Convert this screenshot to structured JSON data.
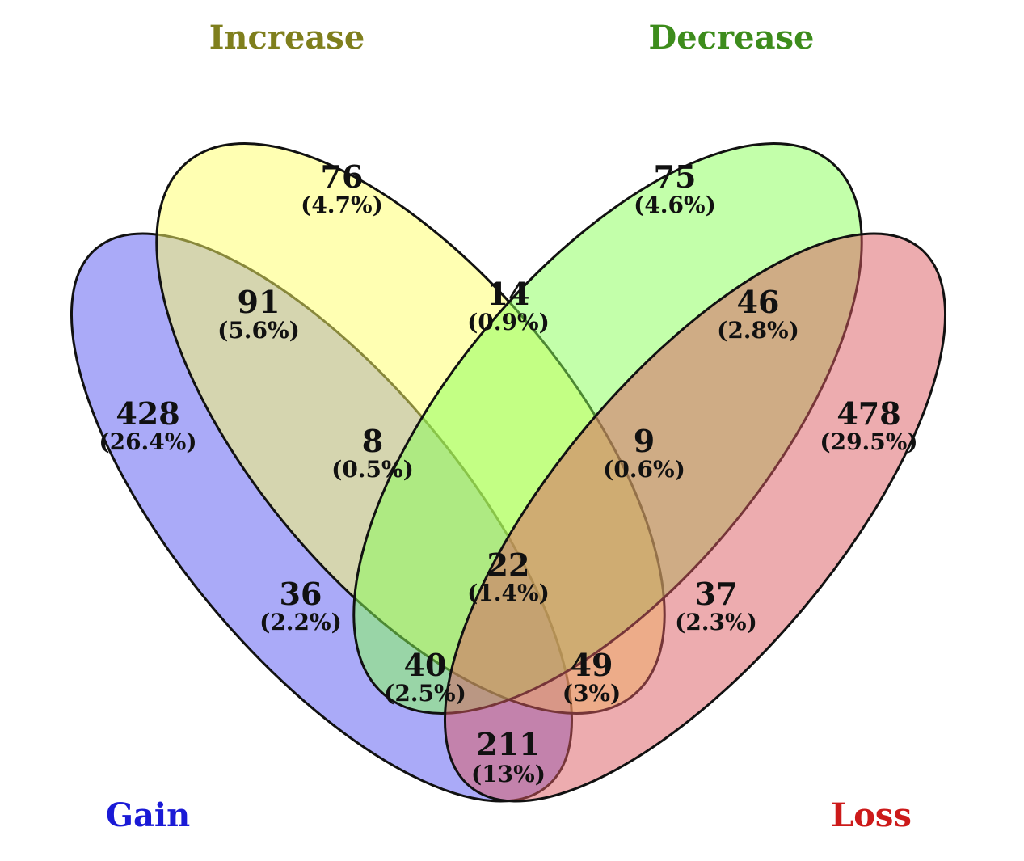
{
  "sets": {
    "gain": {
      "label": "Gain",
      "label_color": "#1a1ad6",
      "fill": "#5555f2"
    },
    "increase": {
      "label": "Increase",
      "label_color": "#7f7f1d",
      "fill": "#ffff66"
    },
    "decrease": {
      "label": "Decrease",
      "label_color": "#3d8c1c",
      "fill": "#88ff55"
    },
    "loss": {
      "label": "Loss",
      "label_color": "#cc1a1a",
      "fill": "#db5a5f"
    }
  },
  "regions": {
    "gain_only": {
      "count": "428",
      "percent": "(26.4%)"
    },
    "increase_only": {
      "count": "76",
      "percent": "(4.7%)"
    },
    "decrease_only": {
      "count": "75",
      "percent": "(4.6%)"
    },
    "loss_only": {
      "count": "478",
      "percent": "(29.5%)"
    },
    "gain_increase": {
      "count": "91",
      "percent": "(5.6%)"
    },
    "increase_decrease": {
      "count": "14",
      "percent": "(0.9%)"
    },
    "decrease_loss": {
      "count": "46",
      "percent": "(2.8%)"
    },
    "gain_increase_decrease": {
      "count": "8",
      "percent": "(0.5%)"
    },
    "increase_decrease_loss": {
      "count": "9",
      "percent": "(0.6%)"
    },
    "all_four": {
      "count": "22",
      "percent": "(1.4%)"
    },
    "gain_decrease": {
      "count": "36",
      "percent": "(2.2%)"
    },
    "increase_loss": {
      "count": "37",
      "percent": "(2.3%)"
    },
    "gain_decrease_loss": {
      "count": "40",
      "percent": "(2.5%)"
    },
    "gain_increase_loss": {
      "count": "49",
      "percent": "(3%)"
    },
    "gain_loss": {
      "count": "211",
      "percent": "(13%)"
    }
  }
}
